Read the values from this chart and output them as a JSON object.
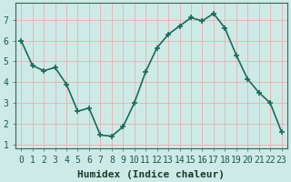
{
  "x": [
    0,
    1,
    2,
    3,
    4,
    5,
    6,
    7,
    8,
    9,
    10,
    11,
    12,
    13,
    14,
    15,
    16,
    17,
    18,
    19,
    20,
    21,
    22,
    23
  ],
  "y": [
    6.0,
    4.8,
    4.55,
    4.7,
    3.9,
    2.6,
    2.75,
    1.45,
    1.4,
    1.85,
    3.0,
    4.5,
    5.65,
    6.3,
    6.7,
    7.1,
    6.95,
    7.3,
    6.6,
    5.3,
    4.15,
    3.5,
    3.0,
    1.6
  ],
  "line_color": "#1a6b5a",
  "marker": "+",
  "marker_size": 4,
  "marker_lw": 1.2,
  "bg_color": "#ceeae6",
  "grid_color": "#e8b0b0",
  "xlabel": "Humidex (Indice chaleur)",
  "xlim": [
    -0.5,
    23.5
  ],
  "ylim": [
    0.8,
    7.8
  ],
  "yticks": [
    1,
    2,
    3,
    4,
    5,
    6,
    7
  ],
  "xticks": [
    0,
    1,
    2,
    3,
    4,
    5,
    6,
    7,
    8,
    9,
    10,
    11,
    12,
    13,
    14,
    15,
    16,
    17,
    18,
    19,
    20,
    21,
    22,
    23
  ],
  "xlabel_fontsize": 8,
  "tick_fontsize": 7,
  "tick_color": "#1a5a4a",
  "xlabel_color": "#1a3a2a",
  "spine_color": "#336655",
  "line_width": 1.2
}
